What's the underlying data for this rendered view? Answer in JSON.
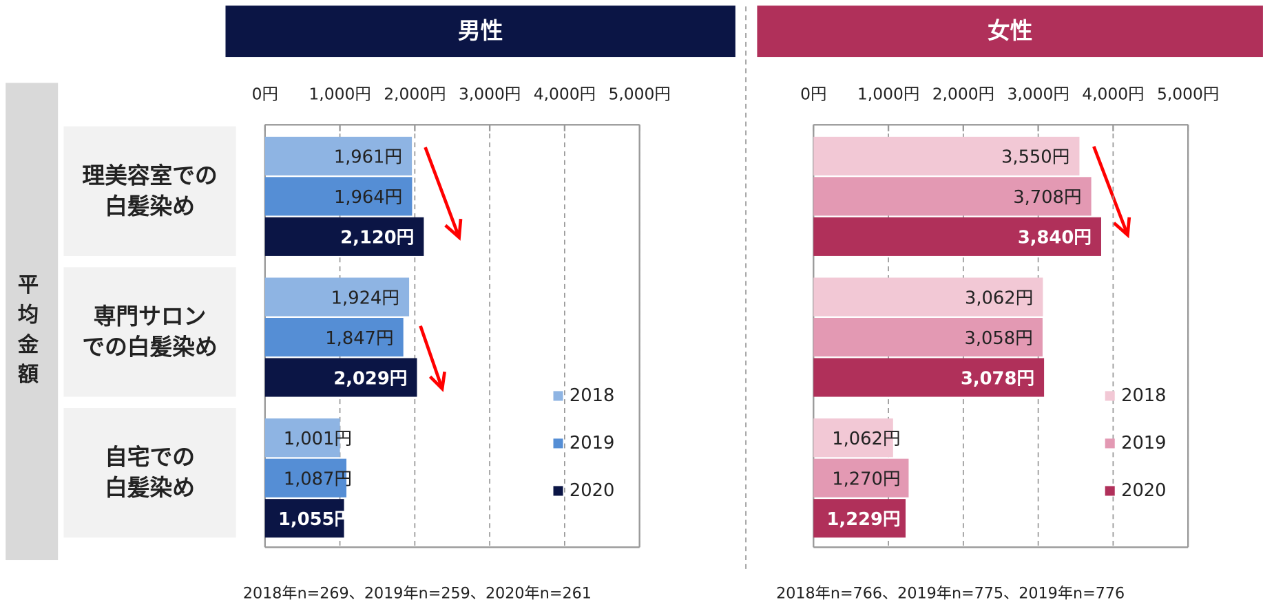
{
  "side_label": "平均金額",
  "chart_data": [
    {
      "type": "bar",
      "orientation": "horizontal",
      "title": "男性",
      "categories": [
        [
          "理美容室での",
          "白髪染め"
        ],
        [
          "専門サロン",
          "での白髪染め"
        ],
        [
          "自宅での",
          "白髪染め"
        ]
      ],
      "series": [
        {
          "name": "2018",
          "color": "#8eb4e3",
          "values": [
            1961,
            1924,
            1001
          ],
          "value_labels": [
            "1,961円",
            "1,924円",
            "1,001円"
          ]
        },
        {
          "name": "2019",
          "color": "#558ed5",
          "values": [
            1964,
            1847,
            1087
          ],
          "value_labels": [
            "1,964円",
            "1,847円",
            "1,087円"
          ]
        },
        {
          "name": "2020",
          "color": "#0b1545",
          "values": [
            2120,
            2029,
            1055
          ],
          "value_labels": [
            "2,120円",
            "2,029円",
            "1,055円"
          ]
        }
      ],
      "xlim": [
        0,
        5000
      ],
      "xticks": [
        {
          "value": 0,
          "label": "0円"
        },
        {
          "value": 1000,
          "label": "1,000円"
        },
        {
          "value": 2000,
          "label": "2,000円"
        },
        {
          "value": 3000,
          "label": "3,000円"
        },
        {
          "value": 4000,
          "label": "4,000円"
        },
        {
          "value": 5000,
          "label": "5,000円"
        }
      ],
      "grid": true,
      "legend": "lower right",
      "header_color": "#0b1545",
      "note": "2018年n=269、2019年n=259、2020年n=261"
    },
    {
      "type": "bar",
      "orientation": "horizontal",
      "title": "女性",
      "categories": [
        [
          "理美容室での",
          "白髪染め"
        ],
        [
          "専門サロン",
          "での白髪染め"
        ],
        [
          "自宅での",
          "白髪染め"
        ]
      ],
      "series": [
        {
          "name": "2018",
          "color": "#f2c8d5",
          "values": [
            3550,
            3062,
            1062
          ],
          "value_labels": [
            "3,550円",
            "3,062円",
            "1,062円"
          ]
        },
        {
          "name": "2019",
          "color": "#e399b3",
          "values": [
            3708,
            3058,
            1270
          ],
          "value_labels": [
            "3,708円",
            "3,058円",
            "1,270円"
          ]
        },
        {
          "name": "2020",
          "color": "#b0305a",
          "values": [
            3840,
            3078,
            1229
          ],
          "value_labels": [
            "3,840円",
            "3,078円",
            "1,229円"
          ]
        }
      ],
      "xlim": [
        0,
        5000
      ],
      "xticks": [
        {
          "value": 0,
          "label": "0円"
        },
        {
          "value": 1000,
          "label": "1,000円"
        },
        {
          "value": 2000,
          "label": "2,000円"
        },
        {
          "value": 3000,
          "label": "3,000円"
        },
        {
          "value": 4000,
          "label": "4,000円"
        },
        {
          "value": 5000,
          "label": "5,000円"
        }
      ],
      "grid": true,
      "legend": "lower right",
      "header_color": "#b0305a",
      "note": "2018年n=766、2019年n=775、2019年n=776"
    }
  ]
}
